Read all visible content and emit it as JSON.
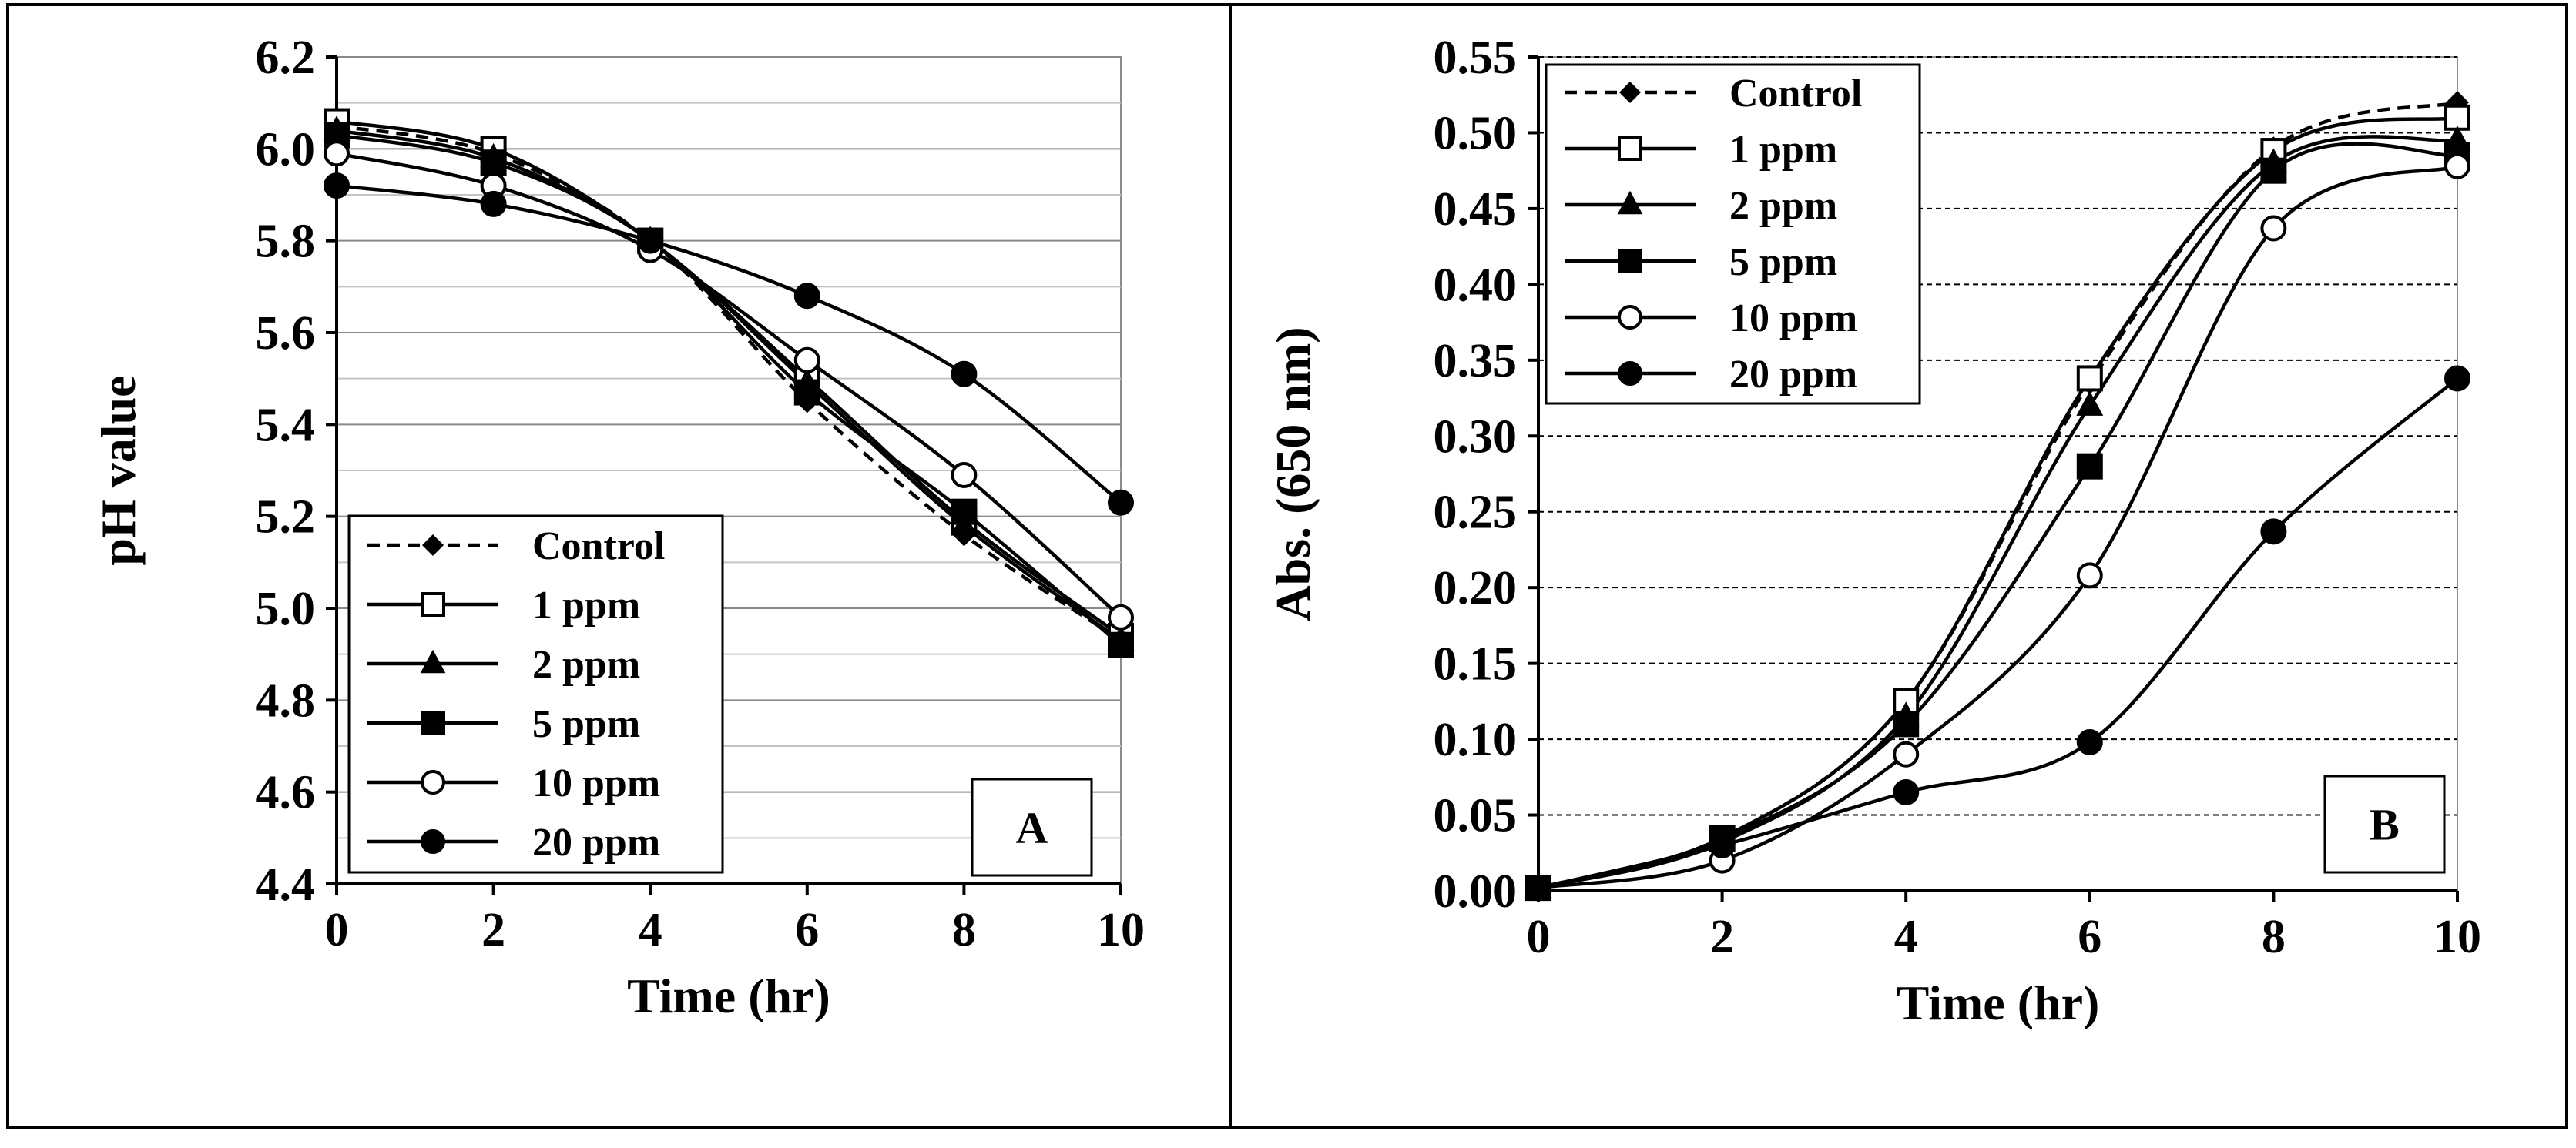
{
  "chart_data": [
    {
      "type": "line",
      "panel_label": "A",
      "xlabel": "Time (hr)",
      "ylabel": "pH value",
      "x": [
        0,
        2,
        4,
        6,
        8,
        10
      ],
      "xticks": [
        0,
        2,
        4,
        6,
        8,
        10
      ],
      "xlim": [
        0,
        10
      ],
      "ylim": [
        4.4,
        6.2
      ],
      "yticks": [
        4.4,
        4.6,
        4.8,
        5.0,
        5.2,
        5.4,
        5.6,
        5.8,
        6.0,
        6.2
      ],
      "ytick_labels": [
        "4.4",
        "4.6",
        "4.8",
        "5.0",
        "5.2",
        "5.4",
        "5.6",
        "5.8",
        "6.0",
        "6.2"
      ],
      "grid": "horizontal",
      "legend_position": "bottom-left",
      "series": [
        {
          "name": "Control",
          "marker": "diamond-filled",
          "dash": true,
          "values": [
            6.05,
            5.99,
            5.8,
            5.45,
            5.16,
            4.93
          ]
        },
        {
          "name": "1 ppm",
          "marker": "square-open",
          "dash": false,
          "values": [
            6.06,
            6.0,
            5.8,
            5.5,
            5.19,
            4.94
          ]
        },
        {
          "name": "2 ppm",
          "marker": "triangle-filled",
          "dash": false,
          "values": [
            6.04,
            5.98,
            5.8,
            5.49,
            5.18,
            4.93
          ]
        },
        {
          "name": "5 ppm",
          "marker": "square-filled",
          "dash": false,
          "values": [
            6.03,
            5.97,
            5.8,
            5.47,
            5.21,
            4.92
          ]
        },
        {
          "name": "10 ppm",
          "marker": "circle-open",
          "dash": false,
          "values": [
            5.99,
            5.92,
            5.78,
            5.54,
            5.29,
            4.98
          ]
        },
        {
          "name": "20 ppm",
          "marker": "circle-filled",
          "dash": false,
          "values": [
            5.92,
            5.88,
            5.8,
            5.68,
            5.51,
            5.23
          ]
        }
      ]
    },
    {
      "type": "line",
      "panel_label": "B",
      "xlabel": "Time (hr)",
      "ylabel": "Abs. (650 nm)",
      "x": [
        0,
        2,
        4,
        6,
        8,
        10
      ],
      "xticks": [
        0,
        2,
        4,
        6,
        8,
        10
      ],
      "xlim": [
        0,
        10
      ],
      "ylim": [
        0,
        0.55
      ],
      "yticks": [
        0,
        0.05,
        0.1,
        0.15,
        0.2,
        0.25,
        0.3,
        0.35,
        0.4,
        0.45,
        0.5,
        0.55
      ],
      "ytick_labels": [
        "0.00",
        "0.05",
        "0.10",
        "0.15",
        "0.20",
        "0.25",
        "0.30",
        "0.35",
        "0.40",
        "0.45",
        "0.50",
        "0.55"
      ],
      "grid": "horizontal",
      "legend_position": "top-left",
      "series": [
        {
          "name": "Control",
          "marker": "diamond-filled",
          "dash": true,
          "values": [
            0.002,
            0.035,
            0.125,
            0.335,
            0.49,
            0.52
          ]
        },
        {
          "name": "1 ppm",
          "marker": "square-open",
          "dash": false,
          "values": [
            0.002,
            0.035,
            0.125,
            0.338,
            0.488,
            0.51
          ]
        },
        {
          "name": "2 ppm",
          "marker": "triangle-filled",
          "dash": false,
          "values": [
            0.002,
            0.032,
            0.115,
            0.32,
            0.48,
            0.495
          ]
        },
        {
          "name": "5 ppm",
          "marker": "square-filled",
          "dash": false,
          "values": [
            0.002,
            0.034,
            0.11,
            0.28,
            0.475,
            0.485
          ]
        },
        {
          "name": "10 ppm",
          "marker": "circle-open",
          "dash": false,
          "values": [
            0.002,
            0.02,
            0.09,
            0.208,
            0.437,
            0.478
          ]
        },
        {
          "name": "20 ppm",
          "marker": "circle-filled",
          "dash": false,
          "values": [
            0.002,
            0.03,
            0.065,
            0.098,
            0.237,
            0.338
          ]
        }
      ]
    }
  ]
}
